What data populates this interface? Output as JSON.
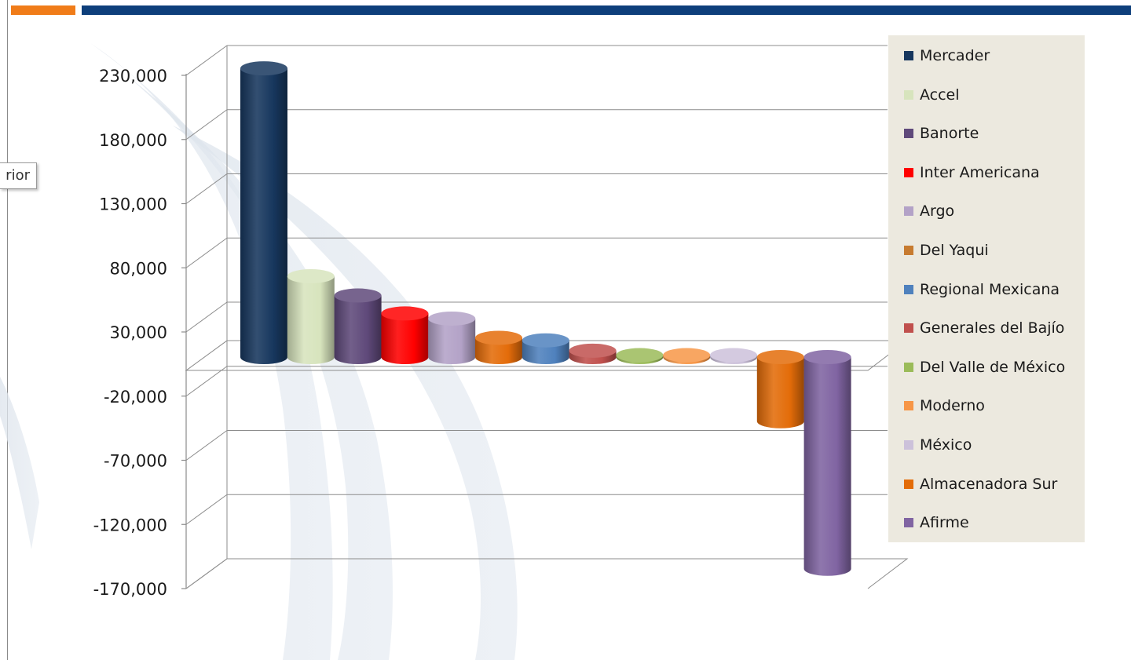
{
  "callout": {
    "text": "rior"
  },
  "chart_data": {
    "type": "bar",
    "style": "3d-cylinder",
    "title": "",
    "xlabel": "",
    "ylabel": "",
    "ylim": [
      -170000,
      230000
    ],
    "yticks": [
      "230,000",
      "180,000",
      "130,000",
      "80,000",
      "30,000",
      "-20,000",
      "-70,000",
      "-120,000",
      "-170,000"
    ],
    "ytick_values": [
      230000,
      180000,
      130000,
      80000,
      30000,
      -20000,
      -70000,
      -120000,
      -170000
    ],
    "grid": true,
    "legend_position": "right",
    "categories": [
      "Mercader",
      "Accel",
      "Banorte",
      "Inter Americana",
      "Argo",
      "Del Yaqui",
      "Regional Mexicana",
      "Generales del Bajío",
      "Del Valle de México",
      "Moderno",
      "México",
      "Almacenadora Sur",
      "Afirme"
    ],
    "values": [
      225000,
      63000,
      48000,
      34000,
      30000,
      15000,
      13000,
      5000,
      1500,
      1500,
      1500,
      -50000,
      -165000
    ],
    "colors": [
      "#17375e",
      "#d7e4bd",
      "#5f497a",
      "#ff0000",
      "#b3a2c7",
      "#e46c0a",
      "#4f81bd",
      "#c0504d",
      "#9bbb59",
      "#f79646",
      "#ccc1da",
      "#e36c09",
      "#8064a2"
    ],
    "series": [
      {
        "name": "Mercader",
        "value": 225000,
        "color": "#17375e"
      },
      {
        "name": "Accel",
        "value": 63000,
        "color": "#d7e4bd"
      },
      {
        "name": "Banorte",
        "value": 48000,
        "color": "#5f497a"
      },
      {
        "name": "Inter Americana",
        "value": 34000,
        "color": "#ff0000"
      },
      {
        "name": "Argo",
        "value": 30000,
        "color": "#b3a2c7"
      },
      {
        "name": "Del Yaqui",
        "value": 15000,
        "color": "#c77b30"
      },
      {
        "name": "Regional Mexicana",
        "value": 13000,
        "color": "#4f81bd"
      },
      {
        "name": "Generales del Bajío",
        "value": 5000,
        "color": "#c0504d"
      },
      {
        "name": "Del Valle de México",
        "value": 1500,
        "color": "#9bbb59"
      },
      {
        "name": "Moderno",
        "value": 1500,
        "color": "#f79646"
      },
      {
        "name": "México",
        "value": 1500,
        "color": "#ccc1da"
      },
      {
        "name": "Almacenadora Sur",
        "value": -50000,
        "color": "#e36c09"
      },
      {
        "name": "Afirme",
        "value": -165000,
        "color": "#8064a2"
      }
    ]
  }
}
